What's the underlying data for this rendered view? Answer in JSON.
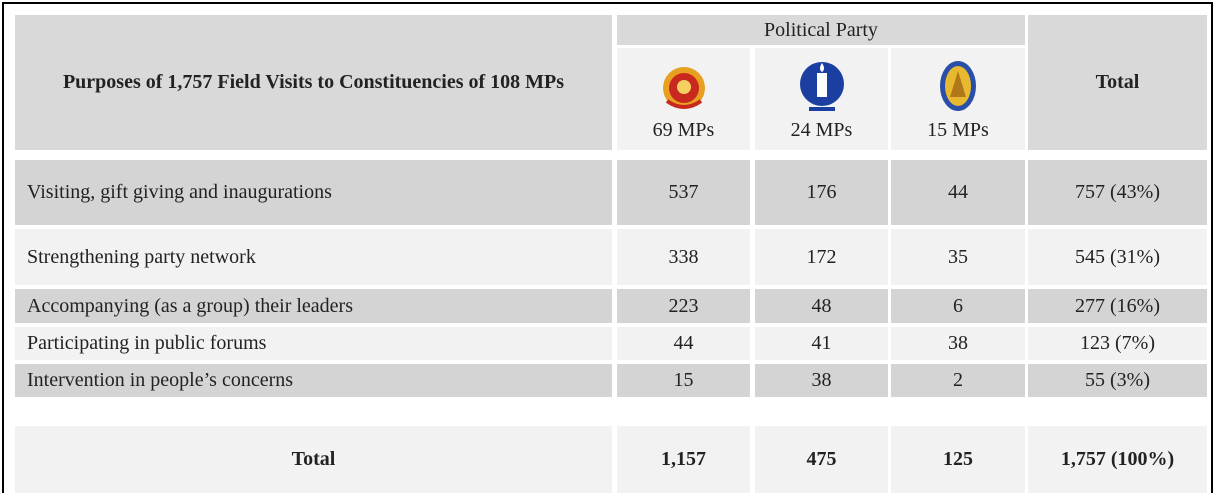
{
  "table": {
    "title": "Purposes of 1,757 Field Visits to Constituencies of 108 MPs",
    "group_header": "Political Party",
    "parties": [
      "69 MPs",
      "24 MPs",
      "15 MPs"
    ],
    "total_header": "Total",
    "rows": [
      [
        "Visiting, gift giving and inaugurations",
        "537",
        "176",
        "44",
        "757 (43%)"
      ],
      [
        "Strengthening party network",
        "338",
        "172",
        "35",
        "545 (31%)"
      ],
      [
        "Accompanying (as a group) their leaders",
        "223",
        "48",
        "6",
        "277 (16%)"
      ],
      [
        "Participating in public forums",
        "44",
        "41",
        "38",
        "123 (7%)"
      ],
      [
        "Intervention in people’s concerns",
        "15",
        "38",
        "2",
        "55 (3%)"
      ]
    ],
    "total_row": [
      "Total",
      "1,157",
      "475",
      "125",
      "1,757 (100%)"
    ]
  }
}
